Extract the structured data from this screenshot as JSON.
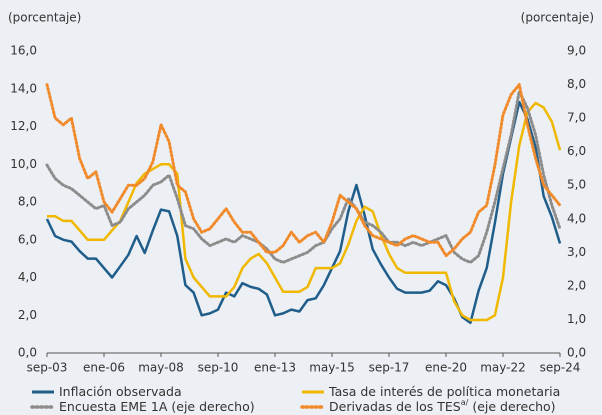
{
  "chart_data": {
    "type": "line",
    "y_label": "(porcentaje)",
    "y2_label": "(porcentaje)",
    "x": [
      "2003-09",
      "2004-01",
      "2004-05",
      "2004-09",
      "2005-01",
      "2005-05",
      "2005-09",
      "2006-01",
      "2006-05",
      "2006-09",
      "2007-01",
      "2007-05",
      "2007-09",
      "2008-01",
      "2008-05",
      "2008-09",
      "2009-01",
      "2009-05",
      "2009-09",
      "2010-01",
      "2010-05",
      "2010-09",
      "2011-01",
      "2011-05",
      "2011-09",
      "2012-01",
      "2012-05",
      "2012-09",
      "2013-01",
      "2013-05",
      "2013-09",
      "2014-01",
      "2014-05",
      "2014-09",
      "2015-01",
      "2015-05",
      "2015-09",
      "2016-01",
      "2016-05",
      "2016-09",
      "2017-01",
      "2017-05",
      "2017-09",
      "2018-01",
      "2018-05",
      "2018-09",
      "2019-01",
      "2019-05",
      "2019-09",
      "2020-01",
      "2020-05",
      "2020-09",
      "2021-01",
      "2021-05",
      "2021-09",
      "2022-01",
      "2022-05",
      "2022-09",
      "2023-01",
      "2023-05",
      "2023-09",
      "2024-01",
      "2024-05",
      "2024-09"
    ],
    "xlim": [
      "2003-09",
      "2024-09"
    ],
    "xticks": [
      {
        "value": "2003-09",
        "label": "sep-03"
      },
      {
        "value": "2006-01",
        "label": "ene-06"
      },
      {
        "value": "2008-05",
        "label": "may-08"
      },
      {
        "value": "2010-09",
        "label": "sep-10"
      },
      {
        "value": "2013-01",
        "label": "ene-13"
      },
      {
        "value": "2015-05",
        "label": "may-15"
      },
      {
        "value": "2017-09",
        "label": "sep-17"
      },
      {
        "value": "2020-01",
        "label": "ene-20"
      },
      {
        "value": "2022-05",
        "label": "may-22"
      },
      {
        "value": "2024-09",
        "label": "sep-24"
      }
    ],
    "ylim": [
      0,
      16
    ],
    "yticks": [
      {
        "value": 0,
        "label": "0,0"
      },
      {
        "value": 2,
        "label": "2,0"
      },
      {
        "value": 4,
        "label": "4,0"
      },
      {
        "value": 6,
        "label": "6,0"
      },
      {
        "value": 8,
        "label": "8,0"
      },
      {
        "value": 10,
        "label": "10,0"
      },
      {
        "value": 12,
        "label": "12,0"
      },
      {
        "value": 14,
        "label": "14,0"
      },
      {
        "value": 16,
        "label": "16,0"
      }
    ],
    "y2lim": [
      0,
      9
    ],
    "y2ticks": [
      {
        "value": 0,
        "label": "0,0"
      },
      {
        "value": 1,
        "label": "1,0"
      },
      {
        "value": 2,
        "label": "2,0"
      },
      {
        "value": 3,
        "label": "3,0"
      },
      {
        "value": 4,
        "label": "4,0"
      },
      {
        "value": 5,
        "label": "5,0"
      },
      {
        "value": 6,
        "label": "6,0"
      },
      {
        "value": 7,
        "label": "7,0"
      },
      {
        "value": 8,
        "label": "8,0"
      },
      {
        "value": 9,
        "label": "9,0"
      }
    ],
    "series": [
      {
        "name": "Inflación observada",
        "color": "#1f5d8a",
        "dash": false,
        "values": [
          7.1,
          6.2,
          6.0,
          5.9,
          5.4,
          5.0,
          5.0,
          4.5,
          4.0,
          4.6,
          5.2,
          6.2,
          5.3,
          6.5,
          7.6,
          7.5,
          6.2,
          3.6,
          3.2,
          2.0,
          2.1,
          2.3,
          3.2,
          3.0,
          3.7,
          3.5,
          3.4,
          3.1,
          2.0,
          2.1,
          2.3,
          2.2,
          2.8,
          2.9,
          3.6,
          4.5,
          5.4,
          7.5,
          8.9,
          7.3,
          5.5,
          4.7,
          4.0,
          3.4,
          3.2,
          3.2,
          3.2,
          3.3,
          3.8,
          3.6,
          2.9,
          1.9,
          1.6,
          3.3,
          4.5,
          6.9,
          9.5,
          11.4,
          13.3,
          12.4,
          10.9,
          8.3,
          7.2,
          5.8
        ]
      },
      {
        "name": "Tasa de interés de política monetaria",
        "color": "#f0b800",
        "dash": false,
        "values": [
          7.25,
          7.25,
          7.0,
          7.0,
          6.5,
          6.0,
          6.0,
          6.0,
          6.5,
          7.0,
          8.0,
          9.0,
          9.5,
          9.75,
          10.0,
          10.0,
          9.5,
          5.0,
          4.0,
          3.5,
          3.0,
          3.0,
          3.0,
          3.5,
          4.5,
          5.0,
          5.25,
          4.75,
          4.0,
          3.25,
          3.25,
          3.25,
          3.5,
          4.5,
          4.5,
          4.5,
          4.75,
          5.75,
          7.0,
          7.75,
          7.5,
          6.25,
          5.25,
          4.5,
          4.25,
          4.25,
          4.25,
          4.25,
          4.25,
          4.25,
          2.75,
          2.0,
          1.75,
          1.75,
          1.75,
          2.0,
          4.0,
          8.0,
          11.0,
          12.75,
          13.25,
          13.0,
          12.25,
          10.75
        ]
      },
      {
        "name": "Encuesta EME 1A (eje derecho)",
        "color": "#8c8c8c",
        "dash": true,
        "axis": "y2",
        "values": [
          5.6,
          5.2,
          5.0,
          4.9,
          4.7,
          4.5,
          4.3,
          4.4,
          3.8,
          3.9,
          4.3,
          4.5,
          4.7,
          5.0,
          5.1,
          5.3,
          4.6,
          3.8,
          3.7,
          3.4,
          3.2,
          3.3,
          3.4,
          3.3,
          3.5,
          3.4,
          3.3,
          3.1,
          2.8,
          2.7,
          2.8,
          2.9,
          3.0,
          3.2,
          3.3,
          3.7,
          4.0,
          4.6,
          4.3,
          3.9,
          3.8,
          3.6,
          3.3,
          3.3,
          3.2,
          3.3,
          3.2,
          3.3,
          3.4,
          3.5,
          3.0,
          2.8,
          2.7,
          2.9,
          3.6,
          4.5,
          5.5,
          6.5,
          7.8,
          7.3,
          6.5,
          5.3,
          4.4,
          3.7
        ]
      },
      {
        "name": "Derivadas de los TES",
        "name_note": "a/",
        "name_suffix": "(eje derecho)",
        "color": "#f08a2a",
        "dash": true,
        "axis": "y2",
        "values": [
          8.0,
          7.0,
          6.8,
          7.0,
          5.8,
          5.2,
          5.4,
          4.5,
          4.2,
          4.6,
          5.0,
          5.0,
          5.2,
          5.7,
          6.8,
          6.3,
          5.0,
          4.8,
          4.0,
          3.6,
          3.7,
          4.0,
          4.3,
          3.9,
          3.6,
          3.6,
          3.3,
          3.0,
          3.0,
          3.2,
          3.6,
          3.3,
          3.5,
          3.6,
          3.3,
          3.9,
          4.7,
          4.5,
          4.3,
          3.8,
          3.5,
          3.4,
          3.3,
          3.2,
          3.4,
          3.5,
          3.4,
          3.3,
          3.3,
          2.9,
          3.1,
          3.4,
          3.6,
          4.2,
          4.4,
          5.6,
          7.1,
          7.7,
          8.0,
          6.8,
          5.8,
          5.0,
          4.7,
          4.4
        ]
      }
    ]
  }
}
